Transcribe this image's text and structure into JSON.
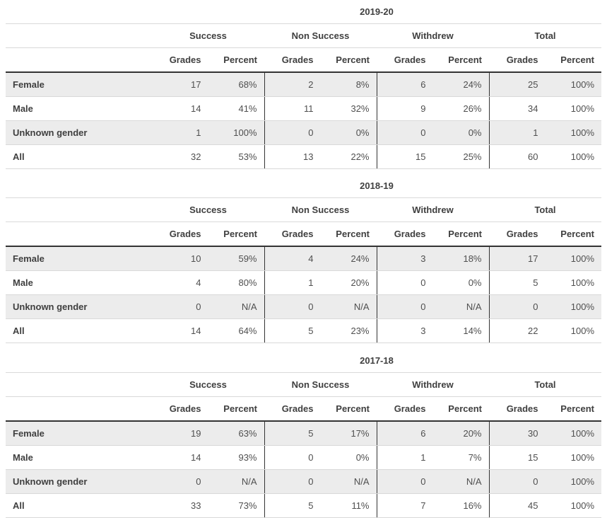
{
  "colors": {
    "stripe_background": "#ececec",
    "light_border": "#d9d9d9",
    "dark_border": "#333333",
    "header_text": "#3f3f3f",
    "value_text": "#4f4f4f"
  },
  "column_groups": [
    "Success",
    "Non Success",
    "Withdrew",
    "Total"
  ],
  "sub_headers": [
    "Grades",
    "Percent"
  ],
  "tables": [
    {
      "title": "2019-20",
      "rows": [
        {
          "label": "Female",
          "cells": [
            "17",
            "68%",
            "2",
            "8%",
            "6",
            "24%",
            "25",
            "100%"
          ]
        },
        {
          "label": "Male",
          "cells": [
            "14",
            "41%",
            "11",
            "32%",
            "9",
            "26%",
            "34",
            "100%"
          ]
        },
        {
          "label": "Unknown gender",
          "cells": [
            "1",
            "100%",
            "0",
            "0%",
            "0",
            "0%",
            "1",
            "100%"
          ]
        },
        {
          "label": "All",
          "cells": [
            "32",
            "53%",
            "13",
            "22%",
            "15",
            "25%",
            "60",
            "100%"
          ]
        }
      ]
    },
    {
      "title": "2018-19",
      "rows": [
        {
          "label": "Female",
          "cells": [
            "10",
            "59%",
            "4",
            "24%",
            "3",
            "18%",
            "17",
            "100%"
          ]
        },
        {
          "label": "Male",
          "cells": [
            "4",
            "80%",
            "1",
            "20%",
            "0",
            "0%",
            "5",
            "100%"
          ]
        },
        {
          "label": "Unknown gender",
          "cells": [
            "0",
            "N/A",
            "0",
            "N/A",
            "0",
            "N/A",
            "0",
            "100%"
          ]
        },
        {
          "label": "All",
          "cells": [
            "14",
            "64%",
            "5",
            "23%",
            "3",
            "14%",
            "22",
            "100%"
          ]
        }
      ]
    },
    {
      "title": "2017-18",
      "rows": [
        {
          "label": "Female",
          "cells": [
            "19",
            "63%",
            "5",
            "17%",
            "6",
            "20%",
            "30",
            "100%"
          ]
        },
        {
          "label": "Male",
          "cells": [
            "14",
            "93%",
            "0",
            "0%",
            "1",
            "7%",
            "15",
            "100%"
          ]
        },
        {
          "label": "Unknown gender",
          "cells": [
            "0",
            "N/A",
            "0",
            "N/A",
            "0",
            "N/A",
            "0",
            "100%"
          ]
        },
        {
          "label": "All",
          "cells": [
            "33",
            "73%",
            "5",
            "11%",
            "7",
            "16%",
            "45",
            "100%"
          ]
        }
      ]
    }
  ]
}
